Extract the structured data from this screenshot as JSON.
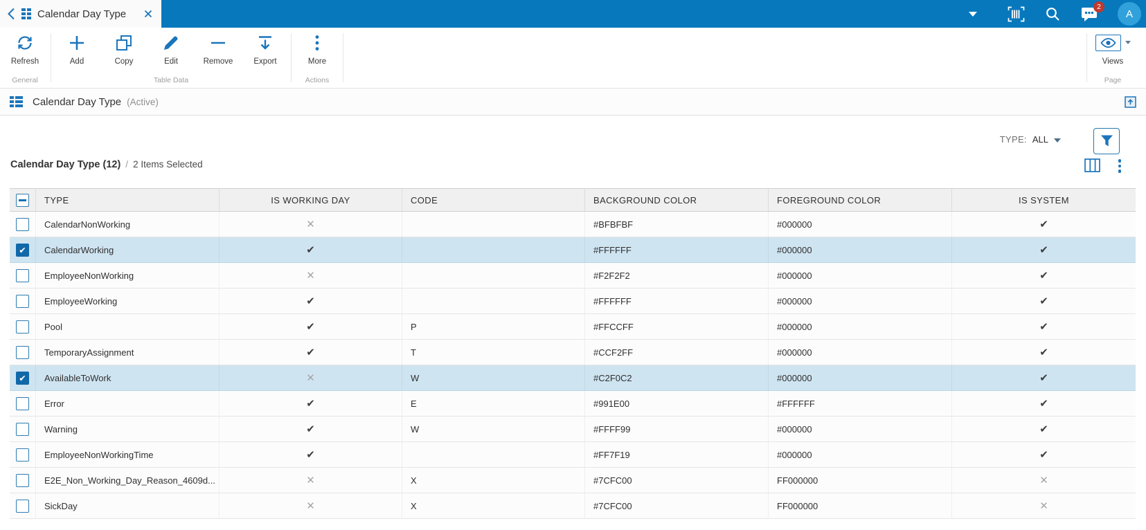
{
  "accent_color": "#1b75bb",
  "topbar_color": "#0878bd",
  "selected_row_color": "#cfe4f1",
  "topbar": {
    "tab_title": "Calendar Day Type",
    "badge_count": "2",
    "avatar_letter": "A",
    "icons": [
      "back-chevron-icon",
      "app-grid-icon",
      "tab-close-icon",
      "dropdown-caret-icon",
      "barcode-icon",
      "search-icon",
      "messages-icon",
      "avatar"
    ]
  },
  "ribbon": {
    "groups": [
      {
        "label": "General",
        "buttons": [
          {
            "label": "Refresh",
            "icon": "refresh-icon"
          }
        ]
      },
      {
        "label": "Table Data",
        "buttons": [
          {
            "label": "Add",
            "icon": "add-icon"
          },
          {
            "label": "Copy",
            "icon": "copy-icon"
          },
          {
            "label": "Edit",
            "icon": "edit-icon"
          },
          {
            "label": "Remove",
            "icon": "remove-icon"
          },
          {
            "label": "Export",
            "icon": "export-icon"
          }
        ]
      },
      {
        "label": "Actions",
        "buttons": [
          {
            "label": "More",
            "icon": "more-icon"
          }
        ]
      },
      {
        "label": "Page",
        "right": true,
        "buttons": [
          {
            "label": "Views",
            "icon": "views-eye-icon",
            "boxed": true,
            "caret": true
          }
        ]
      }
    ]
  },
  "page": {
    "title": "Calendar Day Type",
    "status": "(Active)"
  },
  "filter": {
    "label": "TYPE:",
    "value": "ALL"
  },
  "table": {
    "title": "Calendar Day Type (12)",
    "sep": "/",
    "selection": "2 Items Selected",
    "columns": [
      "TYPE",
      "IS WORKING DAY",
      "CODE",
      "BACKGROUND COLOR",
      "FOREGROUND COLOR",
      "IS SYSTEM"
    ],
    "rows": [
      {
        "type": "CalendarNonWorking",
        "selected": false,
        "is_working_day": false,
        "code": "",
        "background_color": "#BFBFBF",
        "foreground_color": "#000000",
        "is_system": true
      },
      {
        "type": "CalendarWorking",
        "selected": true,
        "is_working_day": true,
        "code": "",
        "background_color": "#FFFFFF",
        "foreground_color": "#000000",
        "is_system": true
      },
      {
        "type": "EmployeeNonWorking",
        "selected": false,
        "is_working_day": false,
        "code": "",
        "background_color": "#F2F2F2",
        "foreground_color": "#000000",
        "is_system": true
      },
      {
        "type": "EmployeeWorking",
        "selected": false,
        "is_working_day": true,
        "code": "",
        "background_color": "#FFFFFF",
        "foreground_color": "#000000",
        "is_system": true
      },
      {
        "type": "Pool",
        "selected": false,
        "is_working_day": true,
        "code": "P",
        "background_color": "#FFCCFF",
        "foreground_color": "#000000",
        "is_system": true
      },
      {
        "type": "TemporaryAssignment",
        "selected": false,
        "is_working_day": true,
        "code": "T",
        "background_color": "#CCF2FF",
        "foreground_color": "#000000",
        "is_system": true
      },
      {
        "type": "AvailableToWork",
        "selected": true,
        "is_working_day": false,
        "code": "W",
        "background_color": "#C2F0C2",
        "foreground_color": "#000000",
        "is_system": true
      },
      {
        "type": "Error",
        "selected": false,
        "is_working_day": true,
        "code": "E",
        "background_color": "#991E00",
        "foreground_color": "#FFFFFF",
        "is_system": true
      },
      {
        "type": "Warning",
        "selected": false,
        "is_working_day": true,
        "code": "W",
        "background_color": "#FFFF99",
        "foreground_color": "#000000",
        "is_system": true
      },
      {
        "type": "EmployeeNonWorkingTime",
        "selected": false,
        "is_working_day": true,
        "code": "",
        "background_color": "#FF7F19",
        "foreground_color": "#000000",
        "is_system": true
      },
      {
        "type": "E2E_Non_Working_Day_Reason_4609d...",
        "selected": false,
        "is_working_day": false,
        "code": "X",
        "background_color": "#7CFC00",
        "foreground_color": "FF000000",
        "is_system": false
      },
      {
        "type": "SickDay",
        "selected": false,
        "is_working_day": false,
        "code": "X",
        "background_color": "#7CFC00",
        "foreground_color": "FF000000",
        "is_system": false
      }
    ]
  }
}
